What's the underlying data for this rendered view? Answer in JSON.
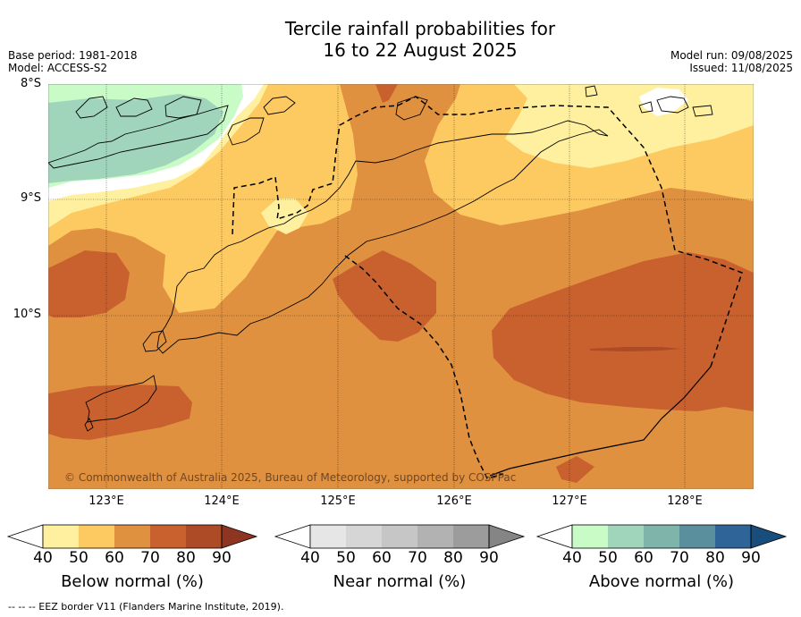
{
  "title_line1": "Tercile rainfall probabilities for",
  "title_line2": "16 to 22 August 2025",
  "base_period": "Base period: 1981-2018",
  "model": "Model: ACCESS-S2",
  "model_run": "Model run: 09/08/2025",
  "issued": "Issued: 11/08/2025",
  "lat_labels": [
    "8°S",
    "9°S",
    "10°S"
  ],
  "lon_labels": [
    "123°E",
    "124°E",
    "125°E",
    "126°E",
    "127°E",
    "128°E"
  ],
  "copyright": "© Commonwealth of Australia 2025, Bureau of Meteorology, supported by COSPPac",
  "colorbars": [
    {
      "title": "Below normal (%)",
      "ticks": [
        "40",
        "50",
        "60",
        "70",
        "80",
        "90"
      ],
      "colors": [
        "#ffffff",
        "#fff0a0",
        "#fdc961",
        "#e0913f",
        "#c9612f",
        "#ad4b27",
        "#8d3520"
      ]
    },
    {
      "title": "Near normal (%)",
      "ticks": [
        "40",
        "50",
        "60",
        "70",
        "80",
        "90"
      ],
      "colors": [
        "#ffffff",
        "#e6e6e6",
        "#d6d6d6",
        "#c6c6c6",
        "#b2b2b2",
        "#9c9c9c",
        "#858585"
      ]
    },
    {
      "title": "Above normal (%)",
      "ticks": [
        "40",
        "50",
        "60",
        "70",
        "80",
        "90"
      ],
      "colors": [
        "#ffffff",
        "#c9fbc7",
        "#a0d5bc",
        "#7fb4ab",
        "#5a8f9d",
        "#2e6498",
        "#184d7c"
      ]
    }
  ],
  "footer": "--  --  -- EEZ border V11 (Flanders Marine Institute, 2019)."
}
